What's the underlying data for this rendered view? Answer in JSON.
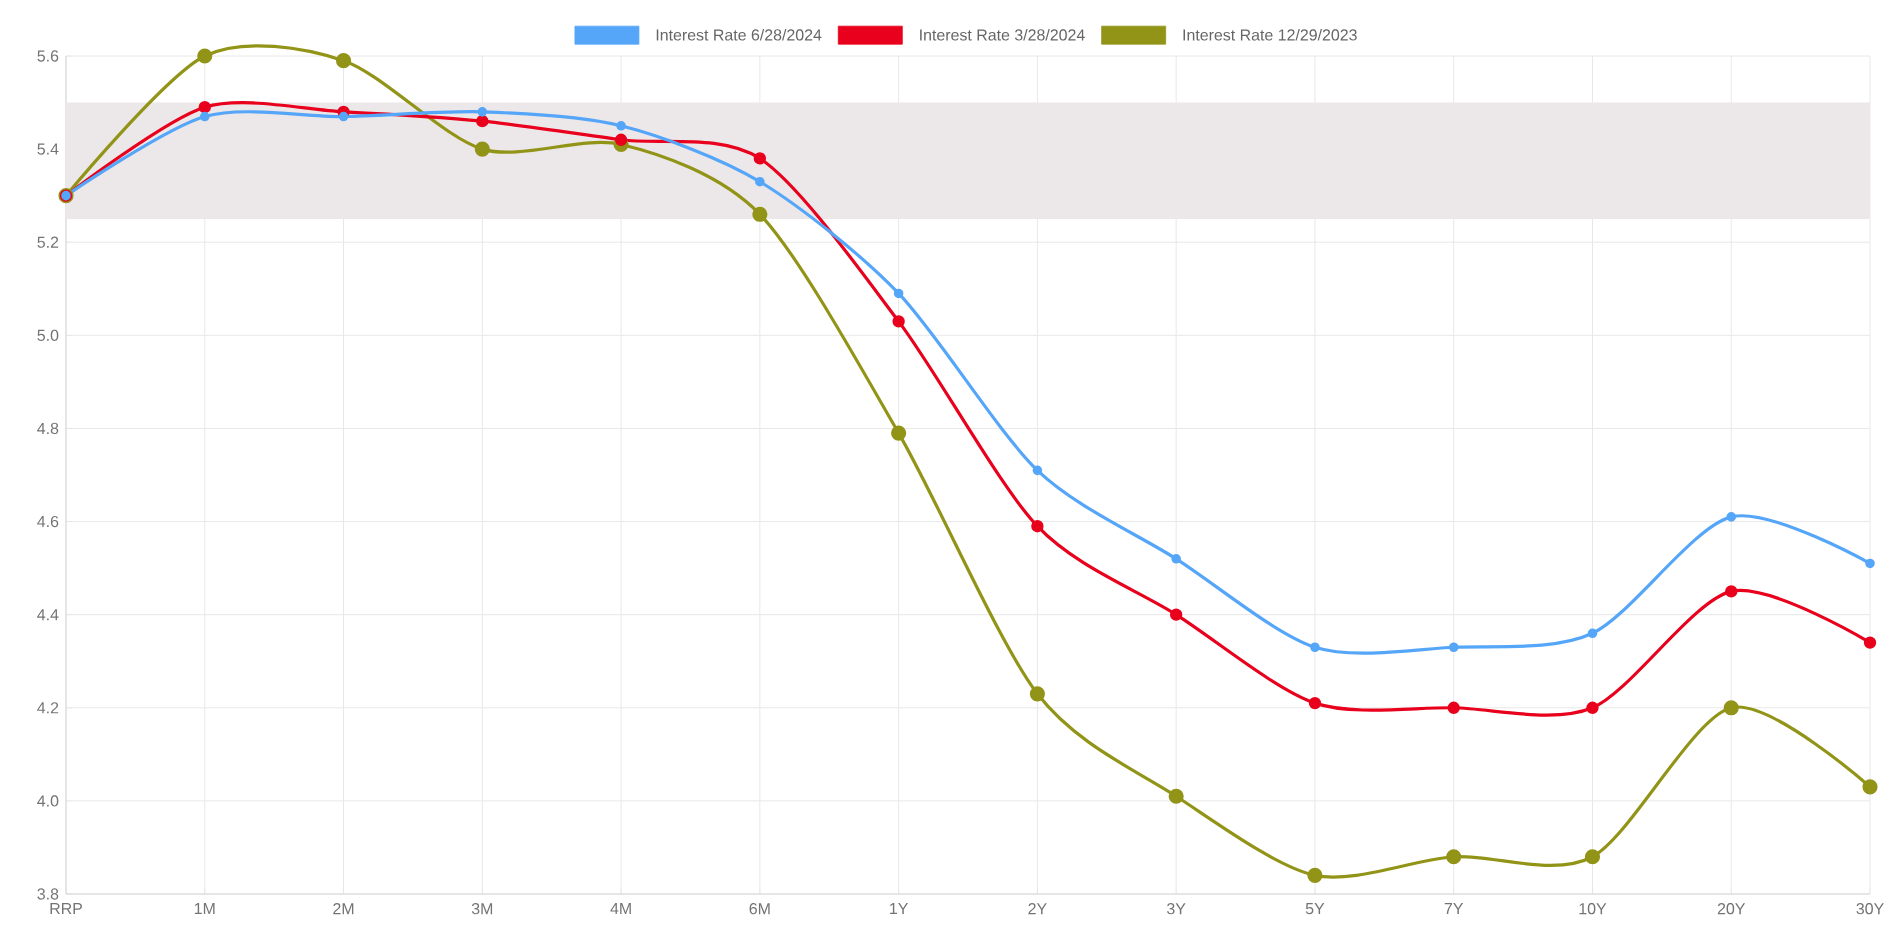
{
  "chart_data": {
    "type": "line",
    "categories": [
      "RRP",
      "1M",
      "2M",
      "3M",
      "4M",
      "6M",
      "1Y",
      "2Y",
      "3Y",
      "5Y",
      "7Y",
      "10Y",
      "20Y",
      "30Y"
    ],
    "series": [
      {
        "name": "Interest Rate 6/28/2024",
        "color": "#55a6f9",
        "values": [
          5.3,
          5.47,
          5.47,
          5.48,
          5.45,
          5.33,
          5.09,
          4.71,
          4.52,
          4.33,
          4.33,
          4.36,
          4.61,
          4.51
        ]
      },
      {
        "name": "Interest Rate 3/28/2024",
        "color": "#e8001c",
        "values": [
          5.3,
          5.49,
          5.48,
          5.46,
          5.42,
          5.38,
          5.03,
          4.59,
          4.4,
          4.21,
          4.2,
          4.2,
          4.45,
          4.34
        ]
      },
      {
        "name": "Interest Rate 12/29/2023",
        "color": "#929418",
        "values": [
          5.3,
          5.6,
          5.59,
          5.4,
          5.41,
          5.26,
          4.79,
          4.23,
          4.01,
          3.84,
          3.88,
          3.88,
          4.2,
          4.03
        ]
      }
    ],
    "ylim": [
      3.8,
      5.6
    ],
    "yticks": [
      3.8,
      {
        "value": 4.0,
        "label": "4.0"
      },
      4.2,
      4.4,
      4.6,
      4.8,
      {
        "value": 5.0,
        "label": "5.0"
      },
      5.2,
      5.4,
      5.6
    ],
    "bands": [
      {
        "axis": "y",
        "from": 5.25,
        "to": 5.5,
        "color": "#ece7e9"
      }
    ],
    "grid": true,
    "legend": "top",
    "marker": "circle",
    "line_style": "solid"
  }
}
